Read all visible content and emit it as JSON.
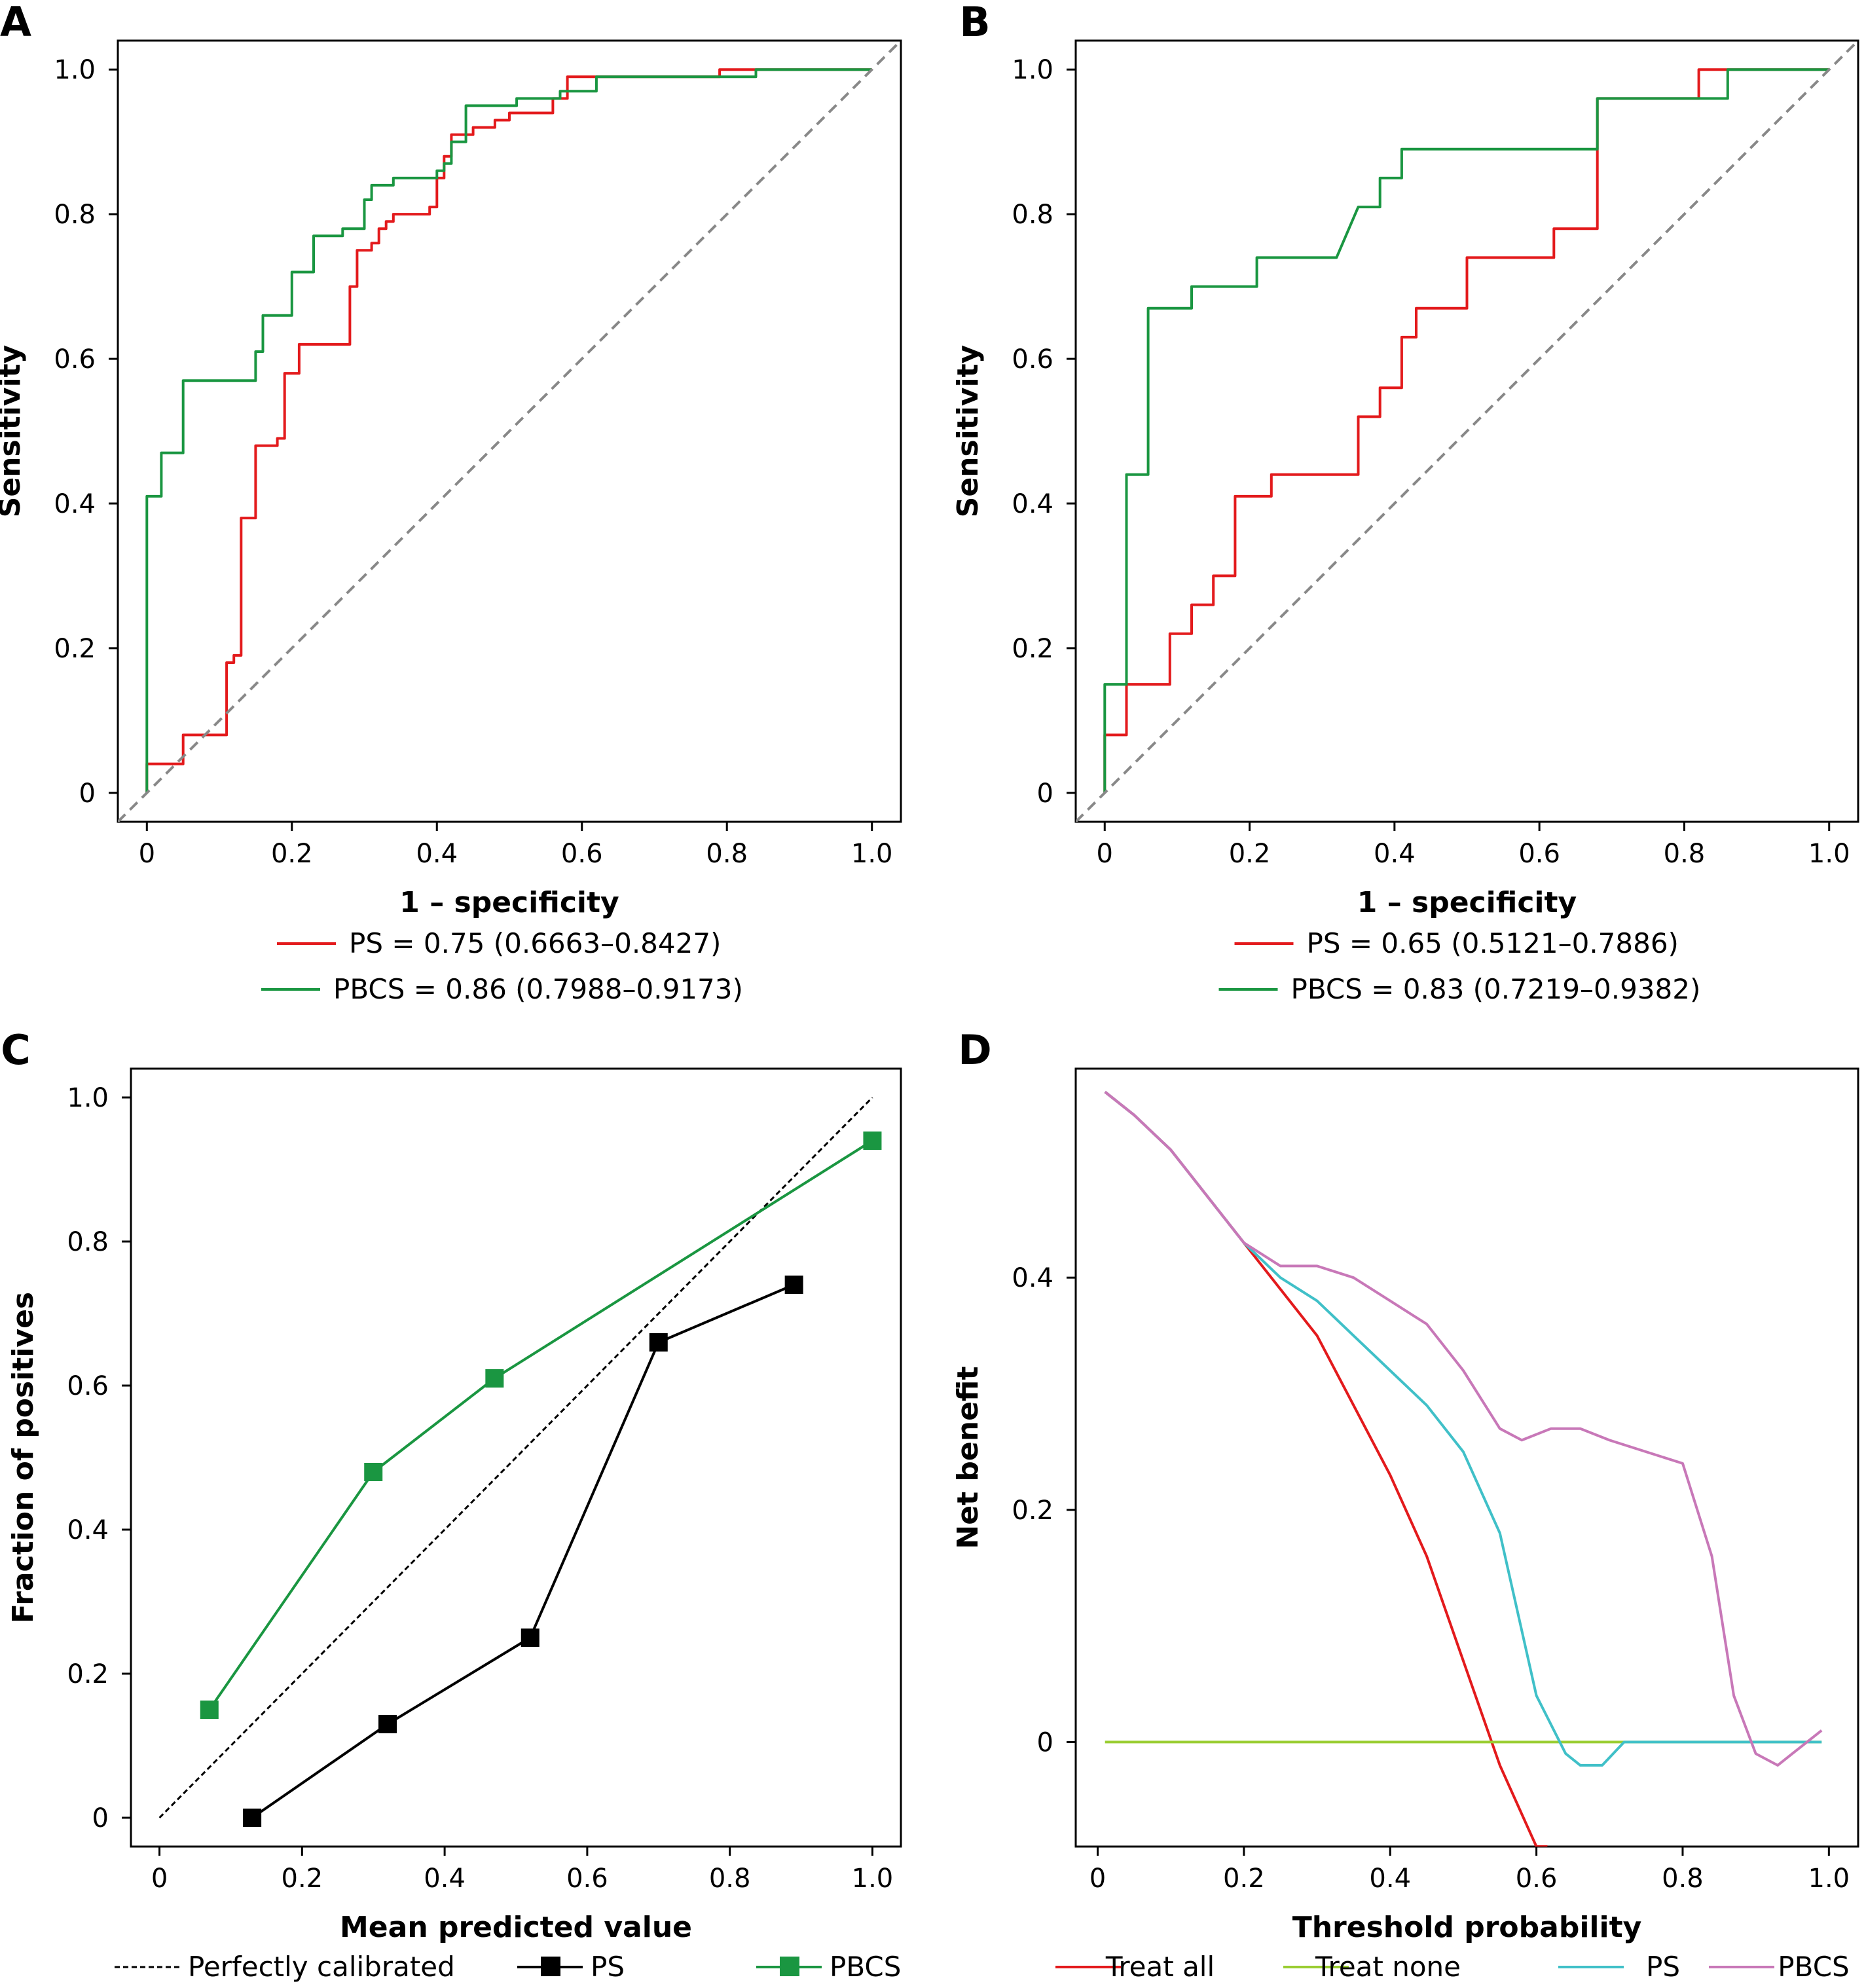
{
  "chart_data": [
    {
      "panel": "A",
      "type": "line",
      "xlabel": "1 – specificity",
      "ylabel": "Sensitivity",
      "xlim": [
        -0.04,
        1.04
      ],
      "ylim": [
        -0.04,
        1.04
      ],
      "xticks": [
        "0",
        "0.2",
        "0.4",
        "0.6",
        "0.8",
        "1.0"
      ],
      "yticks": [
        "0",
        "0.2",
        "0.4",
        "0.6",
        "0.8",
        "1.0"
      ],
      "legend_placement": "below",
      "series": [
        {
          "name": "PS",
          "legend_label": "PS = 0.75 (0.6663–0.8427)",
          "color": "#e31a1c",
          "step": true,
          "x": [
            0,
            0.05,
            0.11,
            0.12,
            0.13,
            0.15,
            0.18,
            0.19,
            0.21,
            0.27,
            0.28,
            0.29,
            0.31,
            0.32,
            0.33,
            0.34,
            0.35,
            0.39,
            0.4,
            0.41,
            0.42,
            0.43,
            0.44,
            0.45,
            0.47,
            0.48,
            0.5,
            0.54,
            0.56,
            0.58,
            0.62,
            0.7,
            0.79,
            0.84,
            1.0
          ],
          "y": [
            0.04,
            0.08,
            0.18,
            0.19,
            0.38,
            0.48,
            0.49,
            0.58,
            0.62,
            0.62,
            0.7,
            0.75,
            0.76,
            0.78,
            0.79,
            0.8,
            0.8,
            0.81,
            0.85,
            0.88,
            0.91,
            0.91,
            0.91,
            0.92,
            0.92,
            0.93,
            0.94,
            0.94,
            0.96,
            0.99,
            0.99,
            0.99,
            1.0,
            1.0,
            1.0
          ]
        },
        {
          "name": "PBCS",
          "legend_label": "PBCS = 0.86 (0.7988–0.9173)",
          "color": "#1a9641",
          "step": true,
          "x": [
            0,
            0.02,
            0.05,
            0.15,
            0.16,
            0.2,
            0.23,
            0.27,
            0.3,
            0.31,
            0.32,
            0.34,
            0.4,
            0.41,
            0.42,
            0.44,
            0.51,
            0.57,
            0.62,
            0.84,
            1.0
          ],
          "y": [
            0.41,
            0.47,
            0.57,
            0.61,
            0.66,
            0.72,
            0.77,
            0.78,
            0.82,
            0.84,
            0.84,
            0.85,
            0.86,
            0.87,
            0.9,
            0.95,
            0.96,
            0.97,
            0.99,
            1.0,
            1.0
          ]
        },
        {
          "name": "",
          "color": "#888888",
          "dashed": true,
          "x": [
            -0.04,
            1.04
          ],
          "y": [
            -0.04,
            1.04
          ]
        }
      ]
    },
    {
      "panel": "B",
      "type": "line",
      "xlabel": "1 – specificity",
      "ylabel": "Sensitivity",
      "xlim": [
        -0.04,
        1.04
      ],
      "ylim": [
        -0.04,
        1.04
      ],
      "xticks": [
        "0",
        "0.2",
        "0.4",
        "0.6",
        "0.8",
        "1.0"
      ],
      "yticks": [
        "0",
        "0.2",
        "0.4",
        "0.6",
        "0.8",
        "1.0"
      ],
      "legend_placement": "below",
      "series": [
        {
          "name": "PS",
          "legend_label": "PS = 0.65 (0.5121–0.7886)",
          "color": "#e31a1c",
          "step": true,
          "x": [
            0,
            0.03,
            0.09,
            0.12,
            0.15,
            0.18,
            0.23,
            0.35,
            0.38,
            0.41,
            0.43,
            0.5,
            0.62,
            0.68,
            0.82,
            0.85,
            1.0
          ],
          "y": [
            0.08,
            0.15,
            0.22,
            0.26,
            0.3,
            0.41,
            0.44,
            0.52,
            0.56,
            0.63,
            0.67,
            0.74,
            0.78,
            0.96,
            1.0,
            1.0,
            1.0
          ]
        },
        {
          "name": "PBCS",
          "legend_label": "PBCS = 0.83 (0.7219–0.9382)",
          "color": "#1a9641",
          "step": true,
          "x": [
            0,
            0.03,
            0.06,
            0.12,
            0.21
          ],
          "y": [
            0.15,
            0.44,
            0.67,
            0.7,
            0.74
          ]
        },
        {
          "name": "",
          "color": "#888888",
          "dashed": true,
          "x": [
            -0.04,
            1.04
          ],
          "y": [
            -0.04,
            1.04
          ]
        }
      ]
    },
    {
      "panel": "C",
      "type": "line",
      "xlabel": "Mean predicted value",
      "ylabel": "Fraction of positives",
      "xlim": [
        -0.04,
        1.04
      ],
      "ylim": [
        -0.04,
        1.04
      ],
      "xticks": [
        "0",
        "0.2",
        "0.4",
        "0.6",
        "0.8",
        "1.0"
      ],
      "yticks": [
        "0",
        "0.2",
        "0.4",
        "0.6",
        "0.8",
        "1.0"
      ],
      "legend_placement": "below",
      "series": [
        {
          "name": "Perfectly calibrated",
          "legend_label": "Perfectly calibrated",
          "color": "#000000",
          "dotted": true,
          "x": [
            0.0,
            1.0
          ],
          "y": [
            0.0,
            1.0
          ]
        },
        {
          "name": "PS",
          "legend_label": "PS",
          "color": "#000000",
          "marker": "square",
          "x": [
            0.13,
            0.32,
            0.52,
            0.7,
            0.89
          ],
          "y": [
            0.0,
            0.13,
            0.25,
            0.66,
            0.74
          ]
        },
        {
          "name": "PBCS",
          "legend_label": "PBCS",
          "color": "#1a9641",
          "marker": "square",
          "x": [
            0.07,
            0.3,
            0.47,
            1.0
          ],
          "y": [
            0.15,
            0.48,
            0.61,
            0.94
          ]
        }
      ]
    },
    {
      "panel": "D",
      "type": "line",
      "xlabel": "Threshold probability",
      "ylabel": "Net benefit",
      "xlim": [
        -0.03,
        1.04
      ],
      "ylim": [
        -0.09,
        0.58
      ],
      "xticks": [
        "0",
        "0.2",
        "0.4",
        "0.6",
        "0.8",
        "1.0"
      ],
      "yticks": [
        "0",
        "0.2",
        "0.4"
      ],
      "legend_placement": "below",
      "series": [
        {
          "name": "Treat all",
          "legend_label": "Treat all",
          "color": "#e31a1c",
          "x": [
            0.01,
            0.05,
            0.1,
            0.15,
            0.2,
            0.25,
            0.3,
            0.35,
            0.4,
            0.45,
            0.5,
            0.55,
            0.6,
            0.615
          ],
          "y": [
            0.56,
            0.54,
            0.51,
            0.47,
            0.43,
            0.39,
            0.35,
            0.29,
            0.23,
            0.16,
            0.07,
            -0.02,
            -0.09,
            -0.09
          ]
        },
        {
          "name": "Treat none",
          "legend_label": "Treat none",
          "color": "#9acd32",
          "x": [
            0.01,
            0.99
          ],
          "y": [
            0.0,
            0.0
          ]
        },
        {
          "name": "PS",
          "legend_label": "PS",
          "color": "#40c0c8",
          "x": [
            0.01,
            0.05,
            0.1,
            0.15,
            0.2,
            0.25,
            0.3,
            0.35,
            0.4,
            0.45,
            0.5,
            0.55,
            0.6,
            0.64,
            0.66,
            0.69,
            0.72,
            0.75,
            0.78,
            0.99
          ],
          "y": [
            0.56,
            0.54,
            0.51,
            0.47,
            0.43,
            0.4,
            0.38,
            0.35,
            0.32,
            0.29,
            0.25,
            0.18,
            0.04,
            -0.01,
            -0.02,
            -0.02,
            0.0,
            0.0,
            0.0,
            0.0
          ]
        },
        {
          "name": "PBCS",
          "legend_label": "PBCS",
          "color": "#c878b8",
          "x": [
            0.01,
            0.05,
            0.1,
            0.15,
            0.2,
            0.25,
            0.3,
            0.35,
            0.4,
            0.45,
            0.5,
            0.55,
            0.58,
            0.62,
            0.66,
            0.7,
            0.75,
            0.8,
            0.84,
            0.87,
            0.9,
            0.93,
            0.95,
            0.99
          ],
          "y": [
            0.56,
            0.54,
            0.51,
            0.47,
            0.43,
            0.41,
            0.41,
            0.4,
            0.38,
            0.36,
            0.32,
            0.27,
            0.26,
            0.27,
            0.27,
            0.26,
            0.25,
            0.24,
            0.16,
            0.04,
            -0.01,
            -0.02,
            -0.01,
            0.01
          ]
        }
      ]
    }
  ]
}
